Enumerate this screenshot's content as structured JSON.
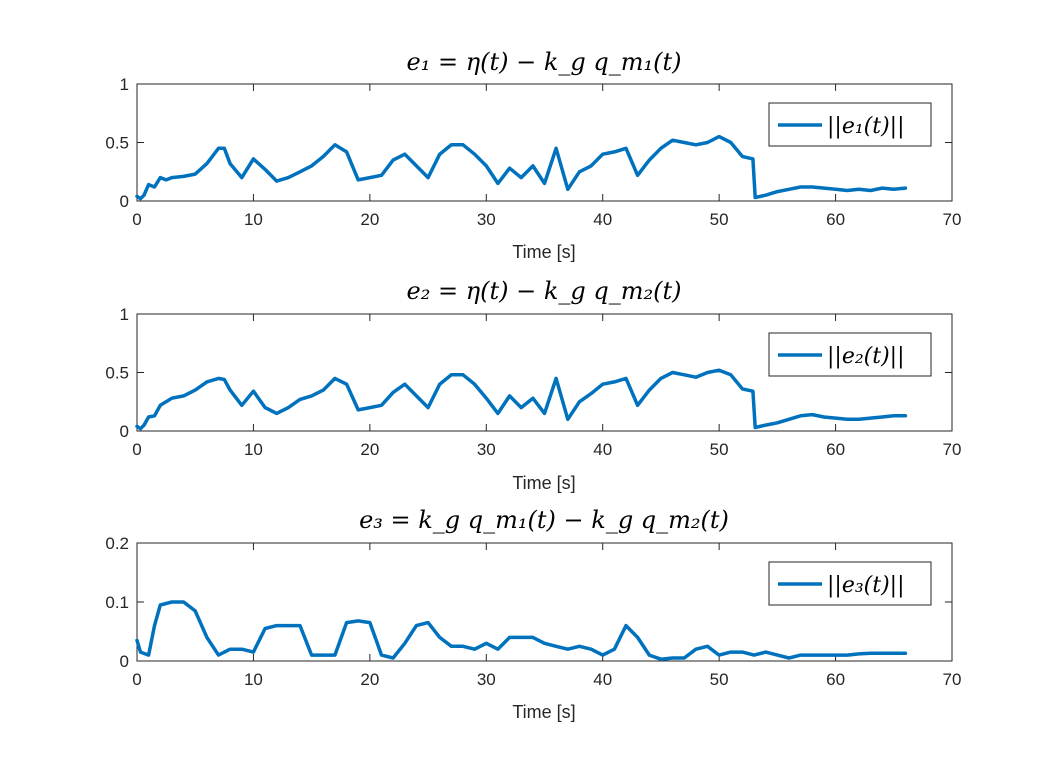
{
  "chart_data": [
    {
      "type": "line",
      "title": "e₁ = η(t) − k_g q_m₁(t)",
      "xlabel": "Time [s]",
      "ylabel": "",
      "xlim": [
        0,
        70
      ],
      "ylim": [
        0,
        1
      ],
      "xticks": [
        0,
        10,
        20,
        30,
        40,
        50,
        60,
        70
      ],
      "yticks": [
        0,
        0.5,
        1
      ],
      "xtick_labels": [
        "0",
        "10",
        "20",
        "30",
        "40",
        "50",
        "60",
        "70"
      ],
      "ytick_labels": [
        "0",
        "0.5",
        "1"
      ],
      "legend": "top-right",
      "color": "#0072BD",
      "series": [
        {
          "name": "||e₁(t)||",
          "x": [
            0,
            0.3,
            0.6,
            1,
            1.5,
            2,
            2.5,
            3,
            4,
            5,
            6,
            7,
            7.5,
            8,
            9,
            10,
            11,
            12,
            13,
            14,
            15,
            16,
            17,
            18,
            19,
            20,
            21,
            22,
            23,
            24,
            25,
            26,
            27,
            28,
            29,
            30,
            31,
            32,
            33,
            34,
            35,
            36,
            37,
            38,
            39,
            40,
            41,
            42,
            43,
            44,
            45,
            46,
            47,
            48,
            49,
            50,
            51,
            52,
            52.9,
            53.1,
            54,
            55,
            56,
            57,
            58,
            59,
            60,
            61,
            62,
            63,
            64,
            65,
            66
          ],
          "y": [
            0.04,
            0.02,
            0.05,
            0.14,
            0.12,
            0.2,
            0.18,
            0.2,
            0.21,
            0.23,
            0.32,
            0.45,
            0.45,
            0.32,
            0.2,
            0.36,
            0.27,
            0.17,
            0.2,
            0.25,
            0.3,
            0.38,
            0.48,
            0.42,
            0.18,
            0.2,
            0.22,
            0.35,
            0.4,
            0.3,
            0.2,
            0.4,
            0.48,
            0.48,
            0.4,
            0.3,
            0.15,
            0.28,
            0.2,
            0.3,
            0.15,
            0.45,
            0.1,
            0.25,
            0.3,
            0.4,
            0.42,
            0.45,
            0.22,
            0.35,
            0.45,
            0.52,
            0.5,
            0.48,
            0.5,
            0.55,
            0.5,
            0.38,
            0.36,
            0.03,
            0.05,
            0.08,
            0.1,
            0.12,
            0.12,
            0.11,
            0.1,
            0.09,
            0.1,
            0.09,
            0.11,
            0.1,
            0.11
          ]
        }
      ]
    },
    {
      "type": "line",
      "title": "e₂ = η(t) − k_g q_m₂(t)",
      "xlabel": "Time [s]",
      "ylabel": "",
      "xlim": [
        0,
        70
      ],
      "ylim": [
        0,
        1
      ],
      "xticks": [
        0,
        10,
        20,
        30,
        40,
        50,
        60,
        70
      ],
      "yticks": [
        0,
        0.5,
        1
      ],
      "xtick_labels": [
        "0",
        "10",
        "20",
        "30",
        "40",
        "50",
        "60",
        "70"
      ],
      "ytick_labels": [
        "0",
        "0.5",
        "1"
      ],
      "legend": "top-right",
      "color": "#0072BD",
      "series": [
        {
          "name": "||e₂(t)||",
          "x": [
            0,
            0.3,
            0.6,
            1,
            1.5,
            2,
            2.5,
            3,
            4,
            5,
            6,
            7,
            7.5,
            8,
            9,
            10,
            11,
            12,
            13,
            14,
            15,
            16,
            17,
            18,
            19,
            20,
            21,
            22,
            23,
            24,
            25,
            26,
            27,
            28,
            29,
            30,
            31,
            32,
            33,
            34,
            35,
            36,
            37,
            38,
            39,
            40,
            41,
            42,
            43,
            44,
            45,
            46,
            47,
            48,
            49,
            50,
            51,
            52,
            52.9,
            53.1,
            54,
            55,
            56,
            57,
            58,
            59,
            60,
            61,
            62,
            63,
            64,
            65,
            66
          ],
          "y": [
            0.04,
            0.02,
            0.05,
            0.12,
            0.13,
            0.22,
            0.25,
            0.28,
            0.3,
            0.35,
            0.42,
            0.45,
            0.44,
            0.35,
            0.22,
            0.34,
            0.2,
            0.15,
            0.2,
            0.27,
            0.3,
            0.35,
            0.45,
            0.4,
            0.18,
            0.2,
            0.22,
            0.33,
            0.4,
            0.3,
            0.2,
            0.4,
            0.48,
            0.48,
            0.4,
            0.28,
            0.15,
            0.3,
            0.2,
            0.28,
            0.15,
            0.45,
            0.1,
            0.25,
            0.32,
            0.4,
            0.42,
            0.45,
            0.22,
            0.35,
            0.45,
            0.5,
            0.48,
            0.46,
            0.5,
            0.52,
            0.48,
            0.36,
            0.34,
            0.03,
            0.05,
            0.07,
            0.1,
            0.13,
            0.14,
            0.12,
            0.11,
            0.1,
            0.1,
            0.11,
            0.12,
            0.13,
            0.13
          ]
        }
      ]
    },
    {
      "type": "line",
      "title": "e₃ = k_g q_m₁(t) − k_g q_m₂(t)",
      "xlabel": "Time [s]",
      "ylabel": "",
      "xlim": [
        0,
        70
      ],
      "ylim": [
        0,
        0.2
      ],
      "xticks": [
        0,
        10,
        20,
        30,
        40,
        50,
        60,
        70
      ],
      "yticks": [
        0,
        0.1,
        0.2
      ],
      "xtick_labels": [
        "0",
        "10",
        "20",
        "30",
        "40",
        "50",
        "60",
        "70"
      ],
      "ytick_labels": [
        "0",
        "0.1",
        "0.2"
      ],
      "legend": "top-right",
      "color": "#0072BD",
      "series": [
        {
          "name": "||e₃(t)||",
          "x": [
            0,
            0.3,
            1,
            1.5,
            2,
            3,
            4,
            5,
            6,
            7,
            8,
            9,
            10,
            11,
            12,
            13,
            14,
            15,
            16,
            17,
            18,
            19,
            20,
            21,
            22,
            23,
            24,
            25,
            26,
            27,
            28,
            29,
            30,
            31,
            32,
            33,
            34,
            35,
            36,
            37,
            38,
            39,
            40,
            41,
            42,
            43,
            44,
            45,
            46,
            47,
            48,
            49,
            50,
            51,
            52,
            53,
            54,
            55,
            56,
            57,
            58,
            59,
            60,
            61,
            62,
            63,
            64,
            65,
            66
          ],
          "y": [
            0.035,
            0.015,
            0.01,
            0.06,
            0.095,
            0.1,
            0.1,
            0.085,
            0.04,
            0.01,
            0.02,
            0.02,
            0.015,
            0.055,
            0.06,
            0.06,
            0.06,
            0.01,
            0.01,
            0.01,
            0.065,
            0.068,
            0.065,
            0.01,
            0.005,
            0.03,
            0.06,
            0.065,
            0.04,
            0.025,
            0.025,
            0.02,
            0.03,
            0.02,
            0.04,
            0.04,
            0.04,
            0.03,
            0.025,
            0.02,
            0.025,
            0.02,
            0.01,
            0.02,
            0.06,
            0.04,
            0.01,
            0.003,
            0.005,
            0.005,
            0.02,
            0.025,
            0.01,
            0.015,
            0.015,
            0.01,
            0.015,
            0.01,
            0.005,
            0.01,
            0.01,
            0.01,
            0.01,
            0.01,
            0.012,
            0.013,
            0.013,
            0.013,
            0.013
          ]
        }
      ]
    }
  ]
}
